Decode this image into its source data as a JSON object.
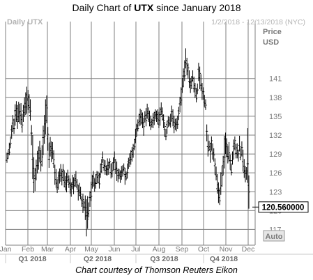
{
  "header": {
    "title_prefix": "Daily Chart of ",
    "ticker": "UTX",
    "title_suffix": " since January 2018"
  },
  "chart_meta": {
    "series_label": "Daily UTX",
    "date_range": "1/2/2018 - 12/13/2018 (NYC)",
    "axis_title_line1": "Price",
    "axis_title_line2": "USD",
    "last_price": "120.560000",
    "auto_label": "Auto"
  },
  "footer": {
    "caption": "Chart courtesy of Thomson Reuters Eikon"
  },
  "colors": {
    "grid": "#7f7f7f",
    "bars": "#000000",
    "axis_text": "#7a7a7a",
    "quarter_text": "#6a6a6a",
    "faint_text": "#b4b4b4"
  },
  "chart_data": {
    "type": "ohlc-bar",
    "title": "Daily Chart of UTX since January 2018",
    "ylabel": "Price USD",
    "ylim": [
      114.5,
      148.5
    ],
    "y_ticks": [
      117,
      120,
      123,
      126,
      129,
      132,
      135,
      138,
      141
    ],
    "grid": true,
    "x_month_ticks": [
      "Jan",
      "Feb",
      "Mar",
      "Apr",
      "May",
      "Jun",
      "Jul",
      "Aug",
      "Sep",
      "Oct",
      "Nov",
      "Dec"
    ],
    "x_quarters": [
      "Q1 2018",
      "Q2 2018",
      "Q3 2018",
      "Q4 2018"
    ],
    "last_value": 120.56,
    "daily_high_low": [
      [
        129.2,
        127.6
      ],
      [
        129.6,
        128.2
      ],
      [
        130.8,
        128.8
      ],
      [
        131.8,
        129.9
      ],
      [
        133.6,
        131.4
      ],
      [
        135.2,
        132.6
      ],
      [
        134.6,
        132.2
      ],
      [
        136.9,
        133.5
      ],
      [
        137.4,
        134.1
      ],
      [
        136.8,
        133.0
      ],
      [
        137.3,
        134.1
      ],
      [
        137.0,
        133.8
      ],
      [
        137.1,
        133.6
      ],
      [
        135.4,
        132.4
      ],
      [
        136.8,
        134.1
      ],
      [
        138.0,
        134.9
      ],
      [
        138.8,
        135.2
      ],
      [
        139.7,
        135.4
      ],
      [
        139.2,
        136.0
      ],
      [
        138.5,
        135.5
      ],
      [
        137.7,
        134.3
      ],
      [
        133.6,
        130.4
      ],
      [
        132.0,
        125.0
      ],
      [
        128.5,
        122.8
      ],
      [
        126.8,
        123.1
      ],
      [
        128.1,
        124.8
      ],
      [
        129.5,
        125.9
      ],
      [
        130.2,
        126.5
      ],
      [
        131.1,
        127.7
      ],
      [
        129.7,
        126.2
      ],
      [
        130.4,
        127.0
      ],
      [
        133.5,
        128.8
      ],
      [
        135.2,
        130.6
      ],
      [
        137.7,
        132.1
      ],
      [
        138.3,
        133.9
      ],
      [
        133.3,
        129.5
      ],
      [
        130.7,
        126.8
      ],
      [
        131.7,
        128.6
      ],
      [
        131.0,
        127.7
      ],
      [
        130.9,
        128.2
      ],
      [
        129.6,
        126.8
      ],
      [
        127.3,
        124.1
      ],
      [
        126.6,
        123.6
      ],
      [
        125.0,
        122.8
      ],
      [
        126.2,
        123.3
      ],
      [
        126.7,
        124.3
      ],
      [
        127.4,
        124.6
      ],
      [
        126.6,
        124.0
      ],
      [
        127.4,
        124.7
      ],
      [
        126.4,
        123.7
      ],
      [
        125.5,
        123.2
      ],
      [
        126.0,
        122.9
      ],
      [
        126.5,
        124.4
      ],
      [
        125.6,
        123.6
      ],
      [
        125.1,
        122.7
      ],
      [
        124.5,
        122.2
      ],
      [
        125.7,
        123.4
      ],
      [
        125.3,
        122.6
      ],
      [
        125.8,
        123.7
      ],
      [
        126.3,
        123.8
      ],
      [
        125.0,
        123.3
      ],
      [
        124.1,
        121.6
      ],
      [
        124.4,
        122.3
      ],
      [
        123.8,
        121.8
      ],
      [
        122.3,
        120.6
      ],
      [
        122.7,
        119.6
      ],
      [
        121.6,
        120.0
      ],
      [
        122.4,
        118.5
      ],
      [
        121.8,
        115.9
      ],
      [
        122.3,
        117.1
      ],
      [
        121.3,
        118.9
      ],
      [
        123.1,
        120.6
      ],
      [
        124.6,
        121.5
      ],
      [
        125.7,
        123.5
      ],
      [
        126.3,
        123.8
      ],
      [
        125.1,
        123.0
      ],
      [
        125.8,
        123.5
      ],
      [
        126.3,
        124.3
      ],
      [
        126.2,
        124.3
      ],
      [
        126.0,
        123.5
      ],
      [
        127.5,
        125.2
      ],
      [
        128.2,
        126.0
      ],
      [
        129.4,
        127.6
      ],
      [
        128.1,
        126.3
      ],
      [
        128.0,
        125.7
      ],
      [
        127.2,
        125.6
      ],
      [
        128.3,
        125.6
      ],
      [
        127.8,
        125.7
      ],
      [
        128.3,
        126.8
      ],
      [
        127.5,
        125.1
      ],
      [
        127.6,
        125.3
      ],
      [
        128.4,
        126.4
      ],
      [
        129.4,
        127.6
      ],
      [
        128.2,
        125.8
      ],
      [
        127.8,
        124.7
      ],
      [
        126.7,
        124.5
      ],
      [
        126.6,
        125.0
      ],
      [
        126.4,
        124.4
      ],
      [
        127.1,
        124.9
      ],
      [
        127.2,
        125.4
      ],
      [
        127.5,
        126.2
      ],
      [
        126.8,
        124.1
      ],
      [
        126.2,
        124.8
      ],
      [
        127.5,
        125.1
      ],
      [
        128.4,
        126.6
      ],
      [
        129.1,
        126.9
      ],
      [
        129.6,
        127.3
      ],
      [
        130.1,
        127.8
      ],
      [
        130.6,
        128.4
      ],
      [
        131.4,
        129.6
      ],
      [
        133.0,
        130.7
      ],
      [
        133.8,
        131.8
      ],
      [
        134.5,
        132.6
      ],
      [
        135.4,
        133.4
      ],
      [
        136.2,
        133.5
      ],
      [
        136.0,
        133.7
      ],
      [
        135.6,
        133.1
      ],
      [
        134.8,
        131.9
      ],
      [
        135.8,
        134.0
      ],
      [
        136.3,
        133.4
      ],
      [
        137.0,
        134.6
      ],
      [
        136.4,
        134.1
      ],
      [
        135.9,
        133.4
      ],
      [
        135.1,
        132.8
      ],
      [
        134.6,
        133.2
      ],
      [
        135.5,
        133.1
      ],
      [
        135.7,
        133.6
      ],
      [
        136.1,
        134.5
      ],
      [
        135.9,
        134.1
      ],
      [
        136.1,
        133.7
      ],
      [
        135.7,
        133.1
      ],
      [
        136.4,
        133.5
      ],
      [
        137.2,
        135.2
      ],
      [
        136.4,
        134.3
      ],
      [
        135.3,
        133.1
      ],
      [
        134.1,
        131.7
      ],
      [
        133.0,
        131.2
      ],
      [
        134.3,
        132.2
      ],
      [
        135.0,
        133.3
      ],
      [
        134.9,
        133.4
      ],
      [
        135.4,
        133.2
      ],
      [
        136.7,
        134.2
      ],
      [
        136.1,
        133.4
      ],
      [
        135.1,
        132.3
      ],
      [
        134.6,
        132.8
      ],
      [
        134.7,
        132.6
      ],
      [
        135.1,
        133.0
      ],
      [
        136.5,
        134.4
      ],
      [
        138.1,
        135.6
      ],
      [
        139.6,
        136.7
      ],
      [
        141.1,
        138.7
      ],
      [
        142.6,
        139.6
      ],
      [
        143.9,
        140.6
      ],
      [
        145.8,
        142.6
      ],
      [
        144.3,
        141.5
      ],
      [
        143.4,
        141.0
      ],
      [
        142.3,
        139.5
      ],
      [
        141.1,
        138.7
      ],
      [
        141.4,
        139.3
      ],
      [
        142.3,
        140.5
      ],
      [
        141.3,
        138.8
      ],
      [
        140.3,
        137.9
      ],
      [
        139.5,
        137.2
      ],
      [
        140.2,
        138.5
      ],
      [
        143.5,
        140.6
      ],
      [
        142.9,
        139.3
      ],
      [
        141.7,
        139.0
      ],
      [
        140.3,
        137.6
      ],
      [
        139.6,
        137.6
      ],
      [
        138.4,
        136.5
      ],
      [
        137.7,
        136.0
      ],
      [
        133.7,
        131.0
      ],
      [
        132.1,
        128.6
      ],
      [
        131.1,
        129.5
      ],
      [
        130.8,
        127.6
      ],
      [
        131.8,
        129.5
      ],
      [
        130.7,
        128.1
      ],
      [
        129.9,
        127.8
      ],
      [
        128.3,
        125.7
      ],
      [
        127.0,
        124.8
      ],
      [
        125.8,
        122.7
      ],
      [
        124.5,
        121.2
      ],
      [
        123.5,
        120.9
      ],
      [
        126.1,
        122.5
      ],
      [
        127.1,
        123.8
      ],
      [
        128.7,
        125.6
      ],
      [
        131.9,
        126.7
      ],
      [
        132.4,
        129.0
      ],
      [
        131.5,
        128.5
      ],
      [
        130.3,
        127.5
      ],
      [
        130.9,
        127.8
      ],
      [
        128.9,
        126.5
      ],
      [
        127.5,
        125.6
      ],
      [
        129.4,
        127.3
      ],
      [
        131.3,
        128.2
      ],
      [
        131.8,
        129.6
      ],
      [
        130.6,
        128.3
      ],
      [
        130.7,
        128.3
      ],
      [
        129.7,
        127.8
      ],
      [
        131.9,
        129.4
      ],
      [
        129.9,
        128.0
      ],
      [
        131.0,
        128.6
      ],
      [
        129.7,
        126.2
      ],
      [
        128.2,
        125.2
      ],
      [
        127.1,
        124.5
      ],
      [
        126.9,
        124.9
      ],
      [
        133.1,
        124.4
      ],
      [
        125.6,
        120.3
      ]
    ]
  }
}
